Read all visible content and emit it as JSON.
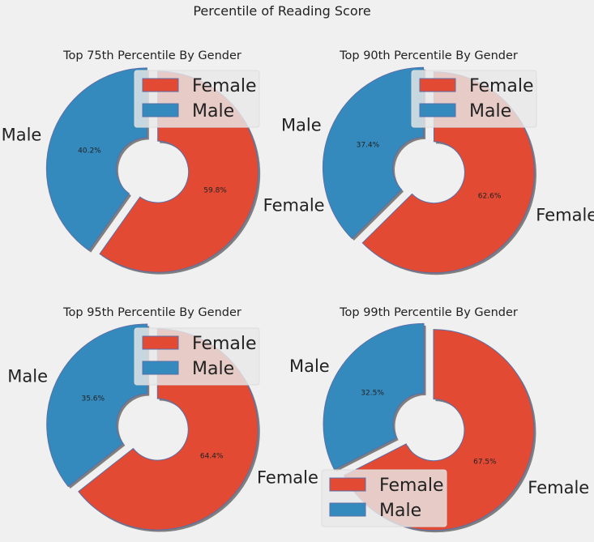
{
  "figure": {
    "title": "Percentile of Reading Score"
  },
  "colors": {
    "Female": "#e24a33",
    "Male": "#348abd",
    "edge": "#5a6fa8",
    "shadow": "#7f7f7f",
    "background": "#f0f0f0"
  },
  "chart_data": [
    {
      "type": "pie",
      "donut": true,
      "title": "Top 75th Percentile By Gender",
      "labels": [
        "Female",
        "Male"
      ],
      "values": [
        59.8,
        40.2
      ],
      "value_labels": [
        "59.8%",
        "40.2%"
      ],
      "legend": {
        "entries": [
          "Female",
          "Male"
        ],
        "placement": "upper right"
      }
    },
    {
      "type": "pie",
      "donut": true,
      "title": "Top 90th Percentile By Gender",
      "labels": [
        "Female",
        "Male"
      ],
      "values": [
        62.6,
        37.4
      ],
      "value_labels": [
        "62.6%",
        "37.4%"
      ],
      "legend": {
        "entries": [
          "Female",
          "Male"
        ],
        "placement": "upper right"
      }
    },
    {
      "type": "pie",
      "donut": true,
      "title": "Top 95th Percentile By Gender",
      "labels": [
        "Female",
        "Male"
      ],
      "values": [
        64.4,
        35.6
      ],
      "value_labels": [
        "64.4%",
        "35.6%"
      ],
      "legend": {
        "entries": [
          "Female",
          "Male"
        ],
        "placement": "upper right"
      }
    },
    {
      "type": "pie",
      "donut": true,
      "title": "Top 99th Percentile By Gender",
      "labels": [
        "Female",
        "Male"
      ],
      "values": [
        67.5,
        32.5
      ],
      "value_labels": [
        "67.5%",
        "32.5%"
      ],
      "legend": {
        "entries": [
          "Female",
          "Male"
        ],
        "placement": "lower left"
      }
    }
  ]
}
